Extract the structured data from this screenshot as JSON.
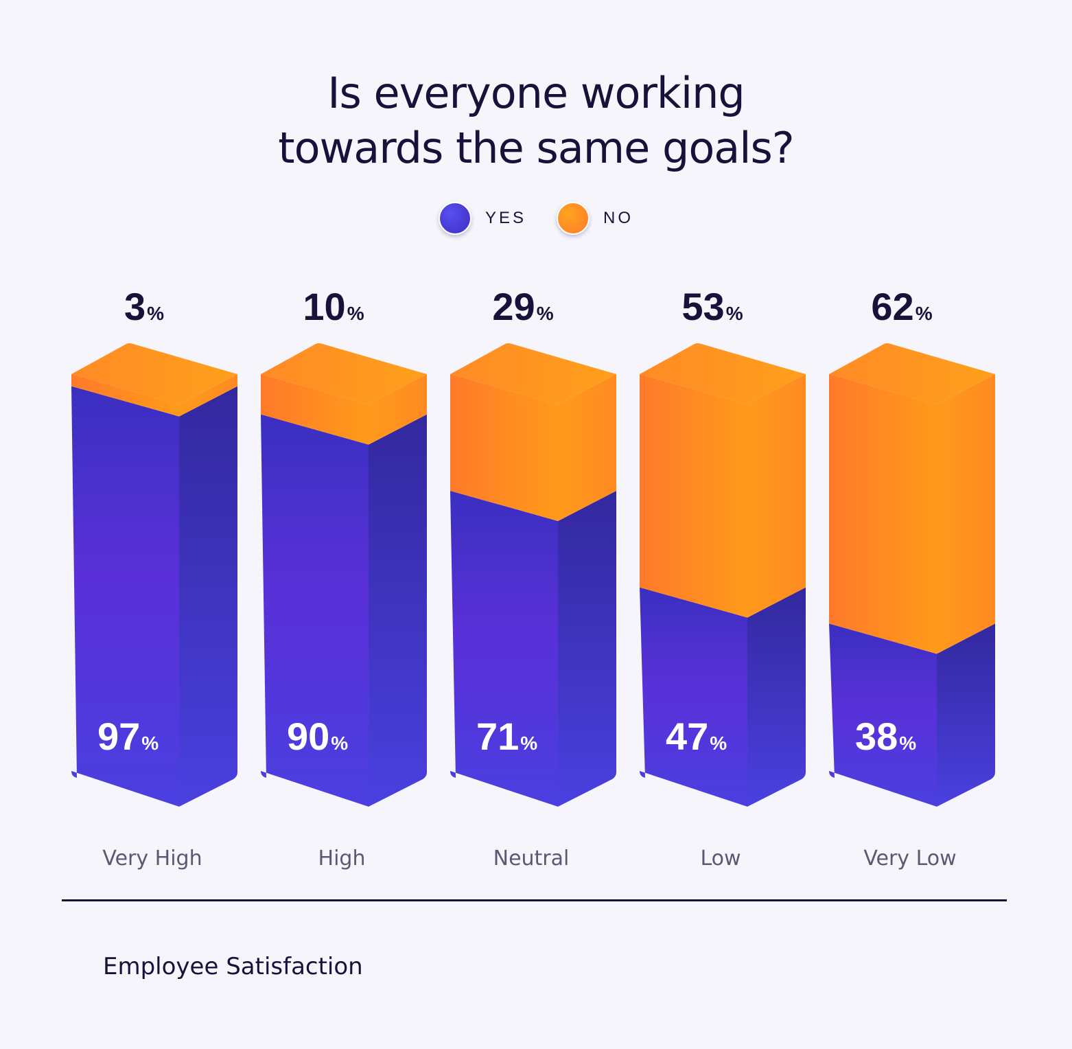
{
  "chart_data": {
    "type": "bar",
    "stacked": true,
    "title_lines": [
      "Is everyone working",
      "towards the same goals?"
    ],
    "categories": [
      "Very High",
      "High",
      "Neutral",
      "Low",
      "Very Low"
    ],
    "series": [
      {
        "name": "YES",
        "values": [
          97,
          90,
          71,
          47,
          38
        ],
        "color": "#4a3fe0"
      },
      {
        "name": "NO",
        "values": [
          3,
          10,
          29,
          53,
          62
        ],
        "color": "#ff8a1c"
      }
    ],
    "unit": "%",
    "xlabel": "Employee Satisfaction",
    "ylabel": "",
    "ylim": [
      0,
      100
    ],
    "legend_position": "top-center",
    "grid": false
  },
  "colors": {
    "yes_light": "#5a4ef0",
    "yes_dark": "#3a2fc2",
    "yes_purple": "#6a2fd8",
    "no_light": "#ffa31f",
    "no_dark": "#ff7a2a",
    "text_dark": "#16123a",
    "text_muted": "#5b5874",
    "background": "#f6f5fb"
  }
}
